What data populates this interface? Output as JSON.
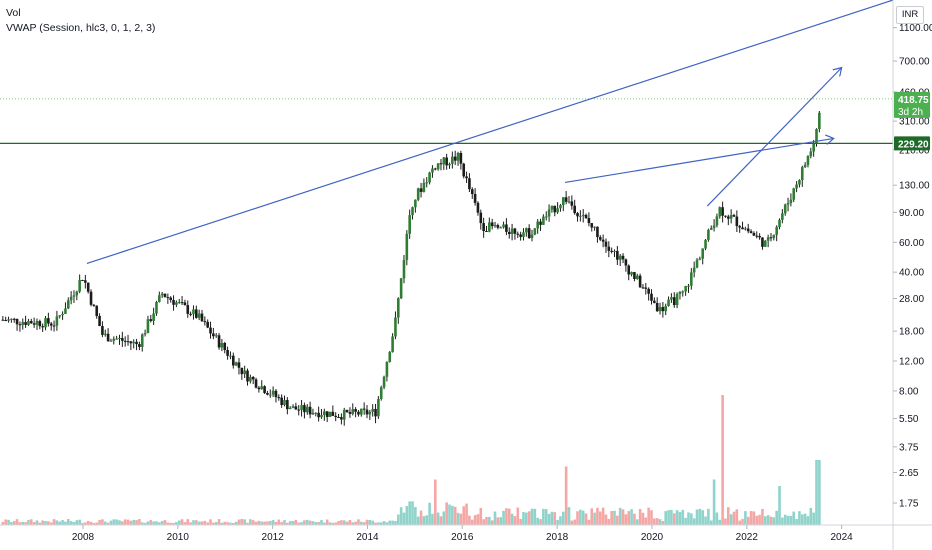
{
  "legend": {
    "line1": "Vol",
    "line2": "VWAP (Session, hlc3, 0, 1, 2, 3)"
  },
  "currency_button": "INR",
  "colors": {
    "up": "#26a69a",
    "down": "#ef5350",
    "volume_up": "#8fd3cb",
    "volume_down": "#f4a7a5",
    "candle_body": "#1b1b1b",
    "trendline": "#3f63c4",
    "horizontal_level": "#1e6b28",
    "last_price_tag": "#4caf50"
  },
  "chart_data": {
    "type": "candlestick",
    "y_scale": "log",
    "ylim": [
      1.3,
      1600
    ],
    "xlim": [
      "2006-04",
      "2025-02"
    ],
    "x_ticks": [
      "2008",
      "2010",
      "2012",
      "2014",
      "2016",
      "2018",
      "2020",
      "2022",
      "2024"
    ],
    "y_ticks": [
      "1100.00",
      "700.00",
      "460.00",
      "310.00",
      "210.00",
      "130.00",
      "90.00",
      "60.00",
      "40.00",
      "28.00",
      "18.00",
      "12.00",
      "8.00",
      "5.50",
      "3.75",
      "2.65",
      "1.75"
    ],
    "price_tags": [
      {
        "label": "418.75",
        "sublabel": "3d 2h",
        "value": 418.75
      },
      {
        "label": "229.20",
        "value": 229.2
      }
    ],
    "horizontal_level": 229.2,
    "last_price": 418.75,
    "approx_close_series": [
      {
        "date": "2006-04",
        "close": 21
      },
      {
        "date": "2007-06",
        "close": 20
      },
      {
        "date": "2008-01",
        "close": 38
      },
      {
        "date": "2008-06",
        "close": 17
      },
      {
        "date": "2009-03",
        "close": 15
      },
      {
        "date": "2009-09",
        "close": 30
      },
      {
        "date": "2010-06",
        "close": 22
      },
      {
        "date": "2011-06",
        "close": 10
      },
      {
        "date": "2012-06",
        "close": 6.3
      },
      {
        "date": "2013-06",
        "close": 5.8
      },
      {
        "date": "2014-03",
        "close": 6
      },
      {
        "date": "2014-08",
        "close": 20
      },
      {
        "date": "2014-12",
        "close": 100
      },
      {
        "date": "2015-06",
        "close": 170
      },
      {
        "date": "2015-12",
        "close": 190
      },
      {
        "date": "2016-06",
        "close": 75
      },
      {
        "date": "2017-06",
        "close": 68
      },
      {
        "date": "2018-03",
        "close": 110
      },
      {
        "date": "2018-12",
        "close": 65
      },
      {
        "date": "2019-06",
        "close": 45
      },
      {
        "date": "2020-03",
        "close": 24
      },
      {
        "date": "2020-09",
        "close": 30
      },
      {
        "date": "2021-06",
        "close": 95
      },
      {
        "date": "2022-06",
        "close": 58
      },
      {
        "date": "2022-12",
        "close": 110
      },
      {
        "date": "2023-06",
        "close": 230
      },
      {
        "date": "2023-08",
        "close": 418.75
      }
    ],
    "volume_spikes": [
      {
        "date": "2015-06",
        "relative": 0.35
      },
      {
        "date": "2018-03",
        "relative": 0.45
      },
      {
        "date": "2021-05",
        "relative": 0.35
      },
      {
        "date": "2021-07",
        "relative": 1.0
      },
      {
        "date": "2022-09",
        "relative": 0.3
      },
      {
        "date": "2023-07",
        "relative": 0.5
      }
    ],
    "trendlines": [
      {
        "from": {
          "date": "2008-02",
          "price": 45
        },
        "to": {
          "date": "2025-02",
          "price": 1600
        }
      },
      {
        "from": {
          "date": "2018-03",
          "price": 135
        },
        "to": {
          "date": "2023-11",
          "price": 245
        },
        "arrow": true
      },
      {
        "from": {
          "date": "2021-03",
          "price": 98
        },
        "to": {
          "date": "2024-01",
          "price": 640
        },
        "arrow": true
      }
    ]
  }
}
